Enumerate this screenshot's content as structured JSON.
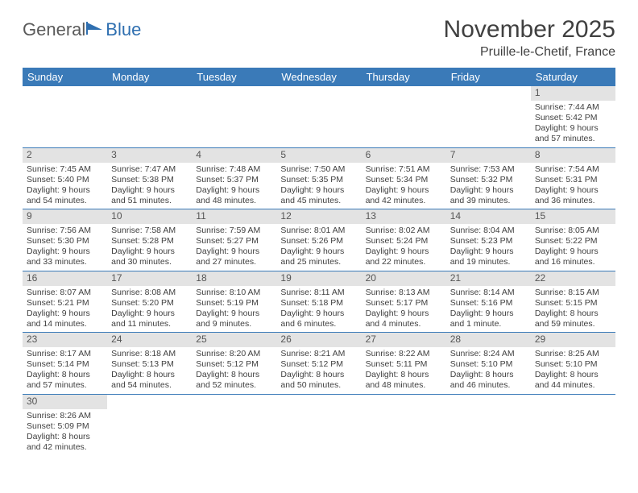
{
  "logo": {
    "part1": "General",
    "part2": "Blue"
  },
  "title": "November 2025",
  "location": "Pruille-le-Chetif, France",
  "colors": {
    "header_bg": "#3a7ab8",
    "header_fg": "#ffffff",
    "daynum_bg": "#e3e3e3",
    "row_divider": "#3a7ab8",
    "text": "#404040",
    "logo_gray": "#5a5a5a",
    "logo_blue": "#2f6fb0"
  },
  "day_labels": [
    "Sunday",
    "Monday",
    "Tuesday",
    "Wednesday",
    "Thursday",
    "Friday",
    "Saturday"
  ],
  "weeks": [
    [
      null,
      null,
      null,
      null,
      null,
      null,
      {
        "n": "1",
        "sr": "Sunrise: 7:44 AM",
        "ss": "Sunset: 5:42 PM",
        "d1": "Daylight: 9 hours",
        "d2": "and 57 minutes."
      }
    ],
    [
      {
        "n": "2",
        "sr": "Sunrise: 7:45 AM",
        "ss": "Sunset: 5:40 PM",
        "d1": "Daylight: 9 hours",
        "d2": "and 54 minutes."
      },
      {
        "n": "3",
        "sr": "Sunrise: 7:47 AM",
        "ss": "Sunset: 5:38 PM",
        "d1": "Daylight: 9 hours",
        "d2": "and 51 minutes."
      },
      {
        "n": "4",
        "sr": "Sunrise: 7:48 AM",
        "ss": "Sunset: 5:37 PM",
        "d1": "Daylight: 9 hours",
        "d2": "and 48 minutes."
      },
      {
        "n": "5",
        "sr": "Sunrise: 7:50 AM",
        "ss": "Sunset: 5:35 PM",
        "d1": "Daylight: 9 hours",
        "d2": "and 45 minutes."
      },
      {
        "n": "6",
        "sr": "Sunrise: 7:51 AM",
        "ss": "Sunset: 5:34 PM",
        "d1": "Daylight: 9 hours",
        "d2": "and 42 minutes."
      },
      {
        "n": "7",
        "sr": "Sunrise: 7:53 AM",
        "ss": "Sunset: 5:32 PM",
        "d1": "Daylight: 9 hours",
        "d2": "and 39 minutes."
      },
      {
        "n": "8",
        "sr": "Sunrise: 7:54 AM",
        "ss": "Sunset: 5:31 PM",
        "d1": "Daylight: 9 hours",
        "d2": "and 36 minutes."
      }
    ],
    [
      {
        "n": "9",
        "sr": "Sunrise: 7:56 AM",
        "ss": "Sunset: 5:30 PM",
        "d1": "Daylight: 9 hours",
        "d2": "and 33 minutes."
      },
      {
        "n": "10",
        "sr": "Sunrise: 7:58 AM",
        "ss": "Sunset: 5:28 PM",
        "d1": "Daylight: 9 hours",
        "d2": "and 30 minutes."
      },
      {
        "n": "11",
        "sr": "Sunrise: 7:59 AM",
        "ss": "Sunset: 5:27 PM",
        "d1": "Daylight: 9 hours",
        "d2": "and 27 minutes."
      },
      {
        "n": "12",
        "sr": "Sunrise: 8:01 AM",
        "ss": "Sunset: 5:26 PM",
        "d1": "Daylight: 9 hours",
        "d2": "and 25 minutes."
      },
      {
        "n": "13",
        "sr": "Sunrise: 8:02 AM",
        "ss": "Sunset: 5:24 PM",
        "d1": "Daylight: 9 hours",
        "d2": "and 22 minutes."
      },
      {
        "n": "14",
        "sr": "Sunrise: 8:04 AM",
        "ss": "Sunset: 5:23 PM",
        "d1": "Daylight: 9 hours",
        "d2": "and 19 minutes."
      },
      {
        "n": "15",
        "sr": "Sunrise: 8:05 AM",
        "ss": "Sunset: 5:22 PM",
        "d1": "Daylight: 9 hours",
        "d2": "and 16 minutes."
      }
    ],
    [
      {
        "n": "16",
        "sr": "Sunrise: 8:07 AM",
        "ss": "Sunset: 5:21 PM",
        "d1": "Daylight: 9 hours",
        "d2": "and 14 minutes."
      },
      {
        "n": "17",
        "sr": "Sunrise: 8:08 AM",
        "ss": "Sunset: 5:20 PM",
        "d1": "Daylight: 9 hours",
        "d2": "and 11 minutes."
      },
      {
        "n": "18",
        "sr": "Sunrise: 8:10 AM",
        "ss": "Sunset: 5:19 PM",
        "d1": "Daylight: 9 hours",
        "d2": "and 9 minutes."
      },
      {
        "n": "19",
        "sr": "Sunrise: 8:11 AM",
        "ss": "Sunset: 5:18 PM",
        "d1": "Daylight: 9 hours",
        "d2": "and 6 minutes."
      },
      {
        "n": "20",
        "sr": "Sunrise: 8:13 AM",
        "ss": "Sunset: 5:17 PM",
        "d1": "Daylight: 9 hours",
        "d2": "and 4 minutes."
      },
      {
        "n": "21",
        "sr": "Sunrise: 8:14 AM",
        "ss": "Sunset: 5:16 PM",
        "d1": "Daylight: 9 hours",
        "d2": "and 1 minute."
      },
      {
        "n": "22",
        "sr": "Sunrise: 8:15 AM",
        "ss": "Sunset: 5:15 PM",
        "d1": "Daylight: 8 hours",
        "d2": "and 59 minutes."
      }
    ],
    [
      {
        "n": "23",
        "sr": "Sunrise: 8:17 AM",
        "ss": "Sunset: 5:14 PM",
        "d1": "Daylight: 8 hours",
        "d2": "and 57 minutes."
      },
      {
        "n": "24",
        "sr": "Sunrise: 8:18 AM",
        "ss": "Sunset: 5:13 PM",
        "d1": "Daylight: 8 hours",
        "d2": "and 54 minutes."
      },
      {
        "n": "25",
        "sr": "Sunrise: 8:20 AM",
        "ss": "Sunset: 5:12 PM",
        "d1": "Daylight: 8 hours",
        "d2": "and 52 minutes."
      },
      {
        "n": "26",
        "sr": "Sunrise: 8:21 AM",
        "ss": "Sunset: 5:12 PM",
        "d1": "Daylight: 8 hours",
        "d2": "and 50 minutes."
      },
      {
        "n": "27",
        "sr": "Sunrise: 8:22 AM",
        "ss": "Sunset: 5:11 PM",
        "d1": "Daylight: 8 hours",
        "d2": "and 48 minutes."
      },
      {
        "n": "28",
        "sr": "Sunrise: 8:24 AM",
        "ss": "Sunset: 5:10 PM",
        "d1": "Daylight: 8 hours",
        "d2": "and 46 minutes."
      },
      {
        "n": "29",
        "sr": "Sunrise: 8:25 AM",
        "ss": "Sunset: 5:10 PM",
        "d1": "Daylight: 8 hours",
        "d2": "and 44 minutes."
      }
    ],
    [
      {
        "n": "30",
        "sr": "Sunrise: 8:26 AM",
        "ss": "Sunset: 5:09 PM",
        "d1": "Daylight: 8 hours",
        "d2": "and 42 minutes."
      },
      null,
      null,
      null,
      null,
      null,
      null
    ]
  ]
}
